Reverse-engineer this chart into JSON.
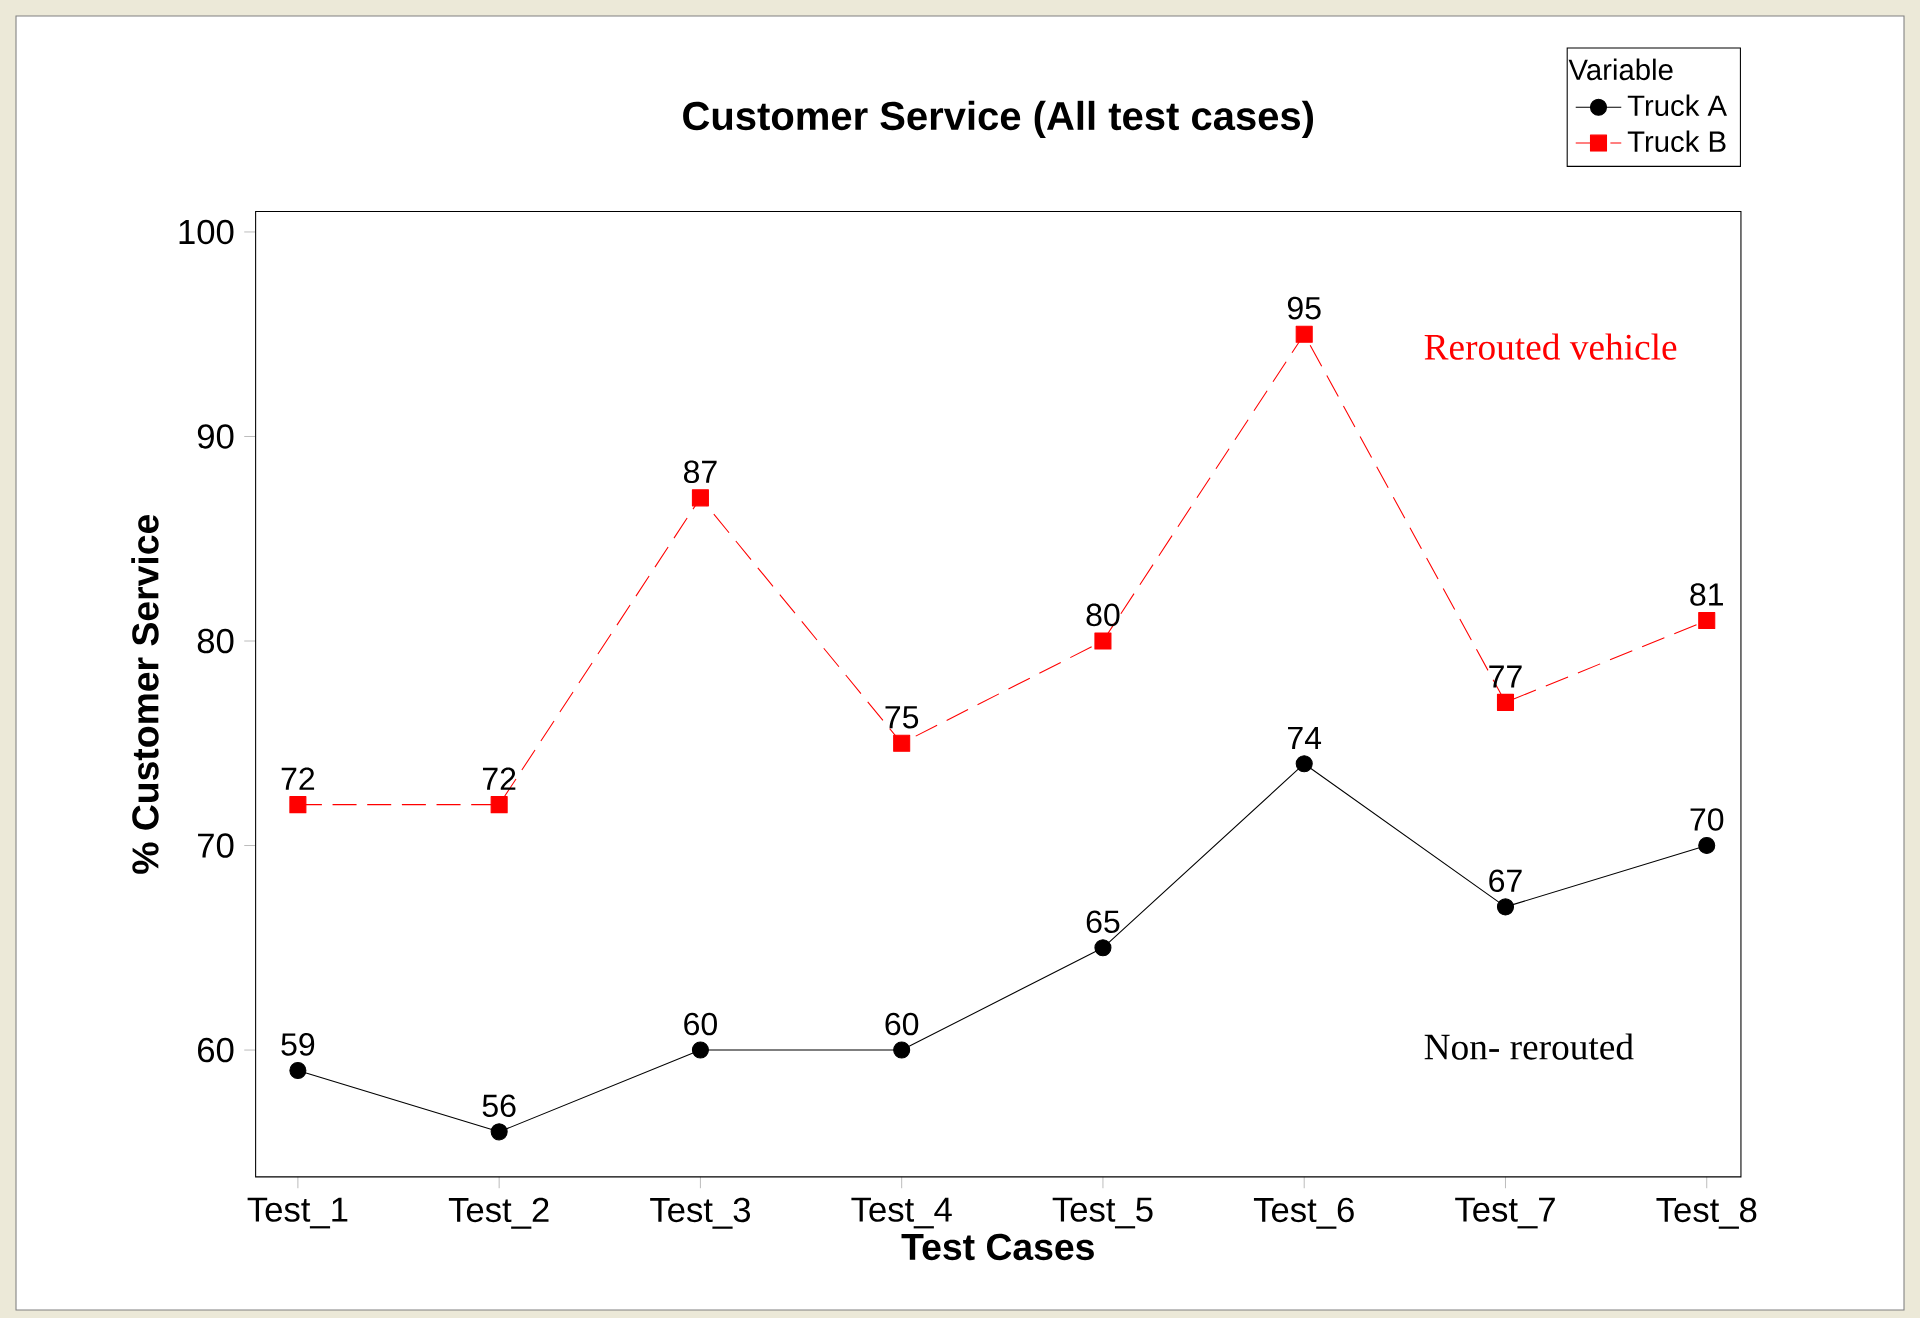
{
  "chart_data": {
    "type": "line",
    "title": "Customer Service (All test cases)",
    "xlabel": "Test Cases",
    "ylabel": "% Customer Service",
    "legend_title": "Variable",
    "legend": "top right",
    "categories": [
      "Test_1",
      "Test_2",
      "Test_3",
      "Test_4",
      "Test_5",
      "Test_6",
      "Test_7",
      "Test_8"
    ],
    "series": [
      {
        "name": "Truck A",
        "color": "#000000",
        "marker": "circle",
        "line_style": "solid",
        "values": [
          59,
          56,
          60,
          60,
          65,
          74,
          67,
          70
        ]
      },
      {
        "name": "Truck B",
        "color": "#ff0000",
        "marker": "square",
        "line_style": "dashed",
        "values": [
          72,
          72,
          87,
          75,
          80,
          95,
          77,
          81
        ]
      }
    ],
    "ylim": [
      53.8,
      101
    ],
    "yticks": [
      60,
      70,
      80,
      90,
      100
    ],
    "data_labels": true,
    "annotations": [
      "Rerouted vehicle",
      "Non- rerouted"
    ]
  }
}
